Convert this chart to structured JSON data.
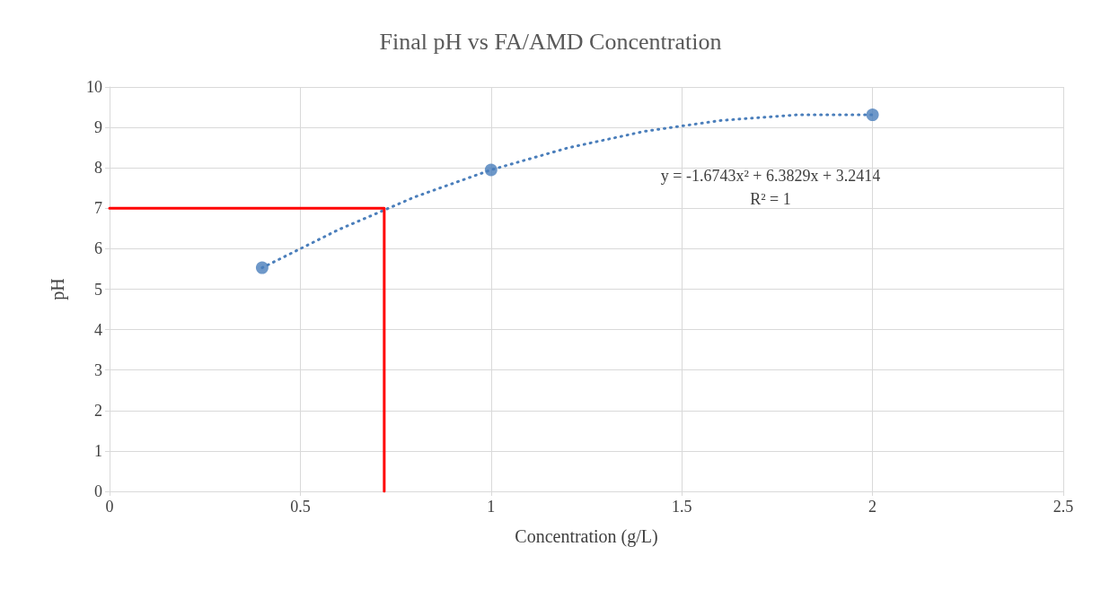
{
  "chart_data": {
    "type": "scatter",
    "title": "Final pH vs FA/AMD Concentration",
    "xlabel": "Concentration (g/L)",
    "ylabel": "pH",
    "xlim": [
      0,
      2.5
    ],
    "xticks": [
      0,
      0.5,
      1,
      1.5,
      2,
      2.5
    ],
    "ylim": [
      0,
      10
    ],
    "yticks": [
      0,
      1,
      2,
      3,
      4,
      5,
      6,
      7,
      8,
      9,
      10
    ],
    "grid": true,
    "annotations": [
      "y = -1.6743x² + 6.3829x + 3.2414",
      "R² = 1"
    ],
    "series": [
      {
        "color": "#4a7ebb",
        "marker": "circle",
        "x": [
          0.4,
          1,
          2
        ],
        "values": [
          5.53,
          7.95,
          9.31
        ]
      },
      {
        "type": "line",
        "color": "#4a7ebb",
        "line_style": "dotted",
        "marker": "none",
        "x": [
          0.4,
          0.6,
          0.8,
          1,
          1.2,
          1.4,
          1.6,
          1.8,
          2
        ],
        "values": [
          5.53,
          6.47,
          7.28,
          7.95,
          8.49,
          8.9,
          9.17,
          9.31,
          9.31
        ]
      },
      {
        "type": "line",
        "color": "#ff0000",
        "line_style": "solid",
        "marker": "none",
        "x": [
          0,
          0.72,
          0.72
        ],
        "values": [
          7,
          7,
          0
        ]
      }
    ]
  }
}
